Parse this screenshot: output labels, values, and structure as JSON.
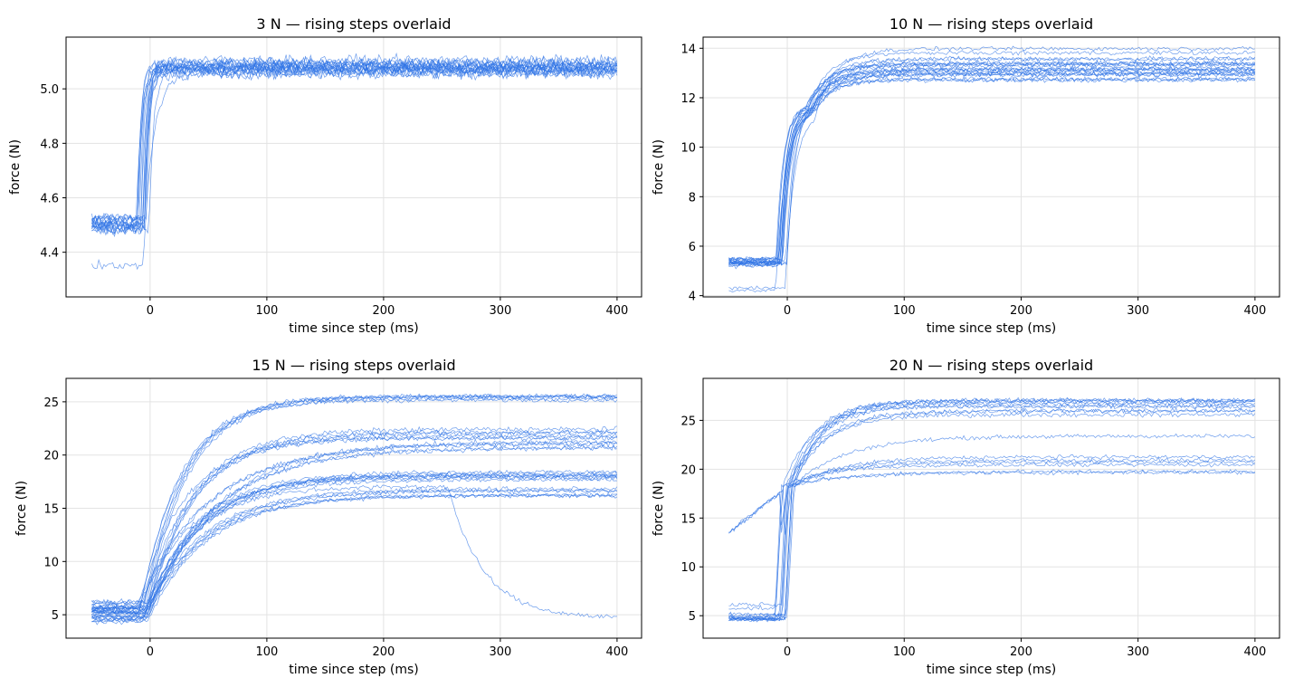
{
  "line_color": "#2f74e6",
  "grid_color": "#e3e3e3",
  "chart_data": [
    {
      "type": "line",
      "title": "3 N — rising steps overlaid",
      "xlabel": "time since step (ms)",
      "ylabel": "force (N)",
      "xlim": [
        -72,
        421
      ],
      "ylim": [
        4.236,
        5.19
      ],
      "xticks": [
        0,
        100,
        200,
        300,
        400
      ],
      "yticks": [
        4.4,
        4.6,
        4.8,
        5.0
      ],
      "ytick_labels": [
        "4.4",
        "4.6",
        "4.8",
        "5.0"
      ],
      "grid": true,
      "traces": [
        {
          "pre": 4.5,
          "settle": 5.08,
          "tau": 3,
          "noise": 0.025,
          "n": 6
        },
        {
          "pre": 4.49,
          "settle": 5.07,
          "tau": 4,
          "noise": 0.025,
          "n": 6
        },
        {
          "pre": 4.52,
          "settle": 5.09,
          "tau": 3,
          "noise": 0.022,
          "n": 5
        },
        {
          "pre": 4.34,
          "settle": 5.05,
          "tau": 8,
          "noise": 0.02,
          "n": 1
        }
      ]
    },
    {
      "type": "line",
      "title": "10 N — rising steps overlaid",
      "xlabel": "time since step (ms)",
      "ylabel": "force (N)",
      "xlim": [
        -72,
        421
      ],
      "ylim": [
        3.95,
        14.45
      ],
      "xticks": [
        0,
        100,
        200,
        300,
        400
      ],
      "yticks": [
        4,
        6,
        8,
        10,
        12,
        14
      ],
      "ytick_labels": [
        "4",
        "6",
        "8",
        "10",
        "12",
        "14"
      ],
      "grid": true,
      "traces": [
        {
          "pre": 5.35,
          "plateau": 11.6,
          "settle": 13.1,
          "tau": 6,
          "noise": 0.12,
          "n": 8
        },
        {
          "pre": 5.4,
          "plateau": 11.7,
          "settle": 13.5,
          "tau": 6,
          "noise": 0.12,
          "n": 6
        },
        {
          "pre": 5.3,
          "plateau": 11.5,
          "settle": 12.9,
          "tau": 7,
          "noise": 0.12,
          "n": 5
        },
        {
          "pre": 4.3,
          "plateau": 11.4,
          "settle": 13.8,
          "tau": 8,
          "noise": 0.1,
          "n": 2
        }
      ]
    },
    {
      "type": "line",
      "title": "15 N — rising steps overlaid",
      "xlabel": "time since step (ms)",
      "ylabel": "force (N)",
      "xlim": [
        -72,
        421
      ],
      "ylim": [
        2.8,
        27.2
      ],
      "xticks": [
        0,
        100,
        200,
        300,
        400
      ],
      "yticks": [
        5,
        10,
        15,
        20,
        25
      ],
      "ytick_labels": [
        "5",
        "10",
        "15",
        "20",
        "25"
      ],
      "grid": true,
      "traces": [
        {
          "pre": 5.5,
          "settle": 25.2,
          "tau": 35,
          "noise": 0.25,
          "n": 6
        },
        {
          "pre": 6.0,
          "settle": 22.0,
          "tau": 40,
          "noise": 0.3,
          "n": 6
        },
        {
          "pre": 5.0,
          "settle": 18.0,
          "tau": 45,
          "noise": 0.25,
          "n": 8
        },
        {
          "pre": 4.5,
          "settle": 16.5,
          "tau": 50,
          "noise": 0.25,
          "n": 6
        },
        {
          "pre": 5.5,
          "settle": 21.0,
          "tau": 60,
          "noise": 0.3,
          "n": 5
        },
        {
          "pre": 5.0,
          "settle": 17.0,
          "tau": 40,
          "noise": 0.3,
          "n": 1,
          "drop_at": 255,
          "drop_to": 4.7
        }
      ]
    },
    {
      "type": "line",
      "title": "20 N — rising steps overlaid",
      "xlabel": "time since step (ms)",
      "ylabel": "force (N)",
      "xlim": [
        -72,
        421
      ],
      "ylim": [
        2.7,
        29.3
      ],
      "xticks": [
        0,
        100,
        200,
        300,
        400
      ],
      "yticks": [
        5,
        10,
        15,
        20,
        25
      ],
      "ytick_labels": [
        "5",
        "10",
        "15",
        "20",
        "25"
      ],
      "grid": true,
      "traces": [
        {
          "pre": 4.8,
          "knee": 18.2,
          "settle": 26.8,
          "tau": 25,
          "noise": 0.3,
          "n": 7
        },
        {
          "pre": 13.5,
          "knee": 18.2,
          "settle": 26.0,
          "tau": 30,
          "noise": 0.3,
          "n": 3
        },
        {
          "pre": 4.5,
          "knee": 18.2,
          "settle": 20.8,
          "tau": 40,
          "noise": 0.25,
          "n": 4
        },
        {
          "pre": 6.0,
          "knee": 18.2,
          "settle": 19.5,
          "tau": 50,
          "noise": 0.25,
          "n": 2
        },
        {
          "pre": 5.0,
          "knee": 18.2,
          "settle": 23.0,
          "tau": 45,
          "noise": 0.25,
          "n": 1
        }
      ]
    }
  ]
}
